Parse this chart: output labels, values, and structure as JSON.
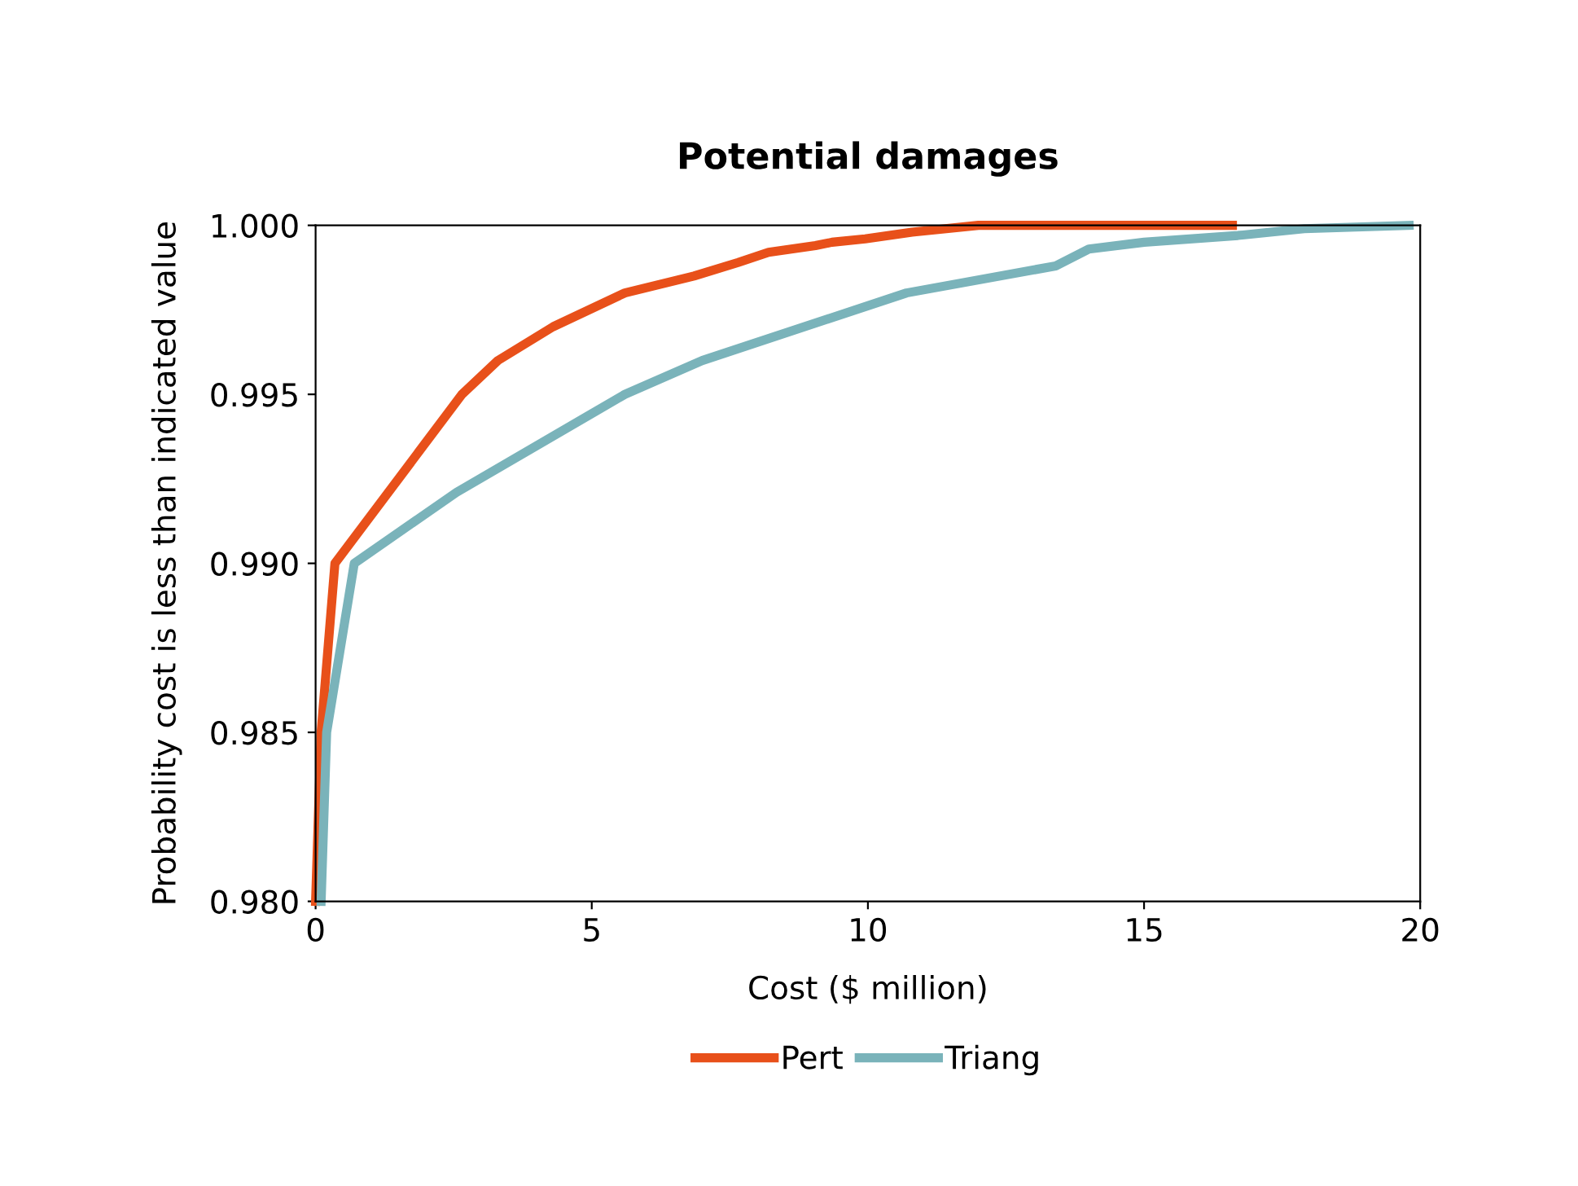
{
  "chart_data": {
    "type": "line",
    "title": "Potential damages",
    "xlabel": "Cost ($ million)",
    "ylabel": "Probability cost is less than indicated value",
    "xlim": [
      0,
      20
    ],
    "xticks": [
      0,
      5,
      10,
      15,
      20
    ],
    "ylim": [
      0.98,
      1.0
    ],
    "yticks": [
      {
        "value": 0.98,
        "label": "0.980"
      },
      {
        "value": 0.985,
        "label": "0.985"
      },
      {
        "value": 0.99,
        "label": "0.990"
      },
      {
        "value": 0.995,
        "label": "0.995"
      },
      {
        "value": 1.0,
        "label": "1.000"
      }
    ],
    "grid": false,
    "legend": "bottom",
    "marker": "none",
    "line_style": "solid",
    "series": [
      {
        "name": "Pert",
        "color": "#e8501a",
        "x": [
          0,
          0.1,
          0.35,
          2.65,
          3.3,
          4.3,
          5.6,
          6.85,
          7.65,
          8.2,
          9.05,
          9.35,
          9.95,
          10.8,
          12.0,
          16.6
        ],
        "values": [
          0.98,
          0.985,
          0.99,
          0.995,
          0.996,
          0.997,
          0.998,
          0.9985,
          0.9989,
          0.9992,
          0.9994,
          0.9995,
          0.9996,
          0.9998,
          1.0,
          1.0
        ]
      },
      {
        "name": "Triang",
        "color": "#7ab3ba",
        "x": [
          0.1,
          0.2,
          0.7,
          2.55,
          5.6,
          7.0,
          10.7,
          13.4,
          14.0,
          15.0,
          16.7,
          17.9,
          19.8
        ],
        "values": [
          0.98,
          0.985,
          0.99,
          0.9921,
          0.995,
          0.996,
          0.998,
          0.9988,
          0.9993,
          0.9995,
          0.9997,
          0.9999,
          1.0
        ]
      }
    ]
  }
}
